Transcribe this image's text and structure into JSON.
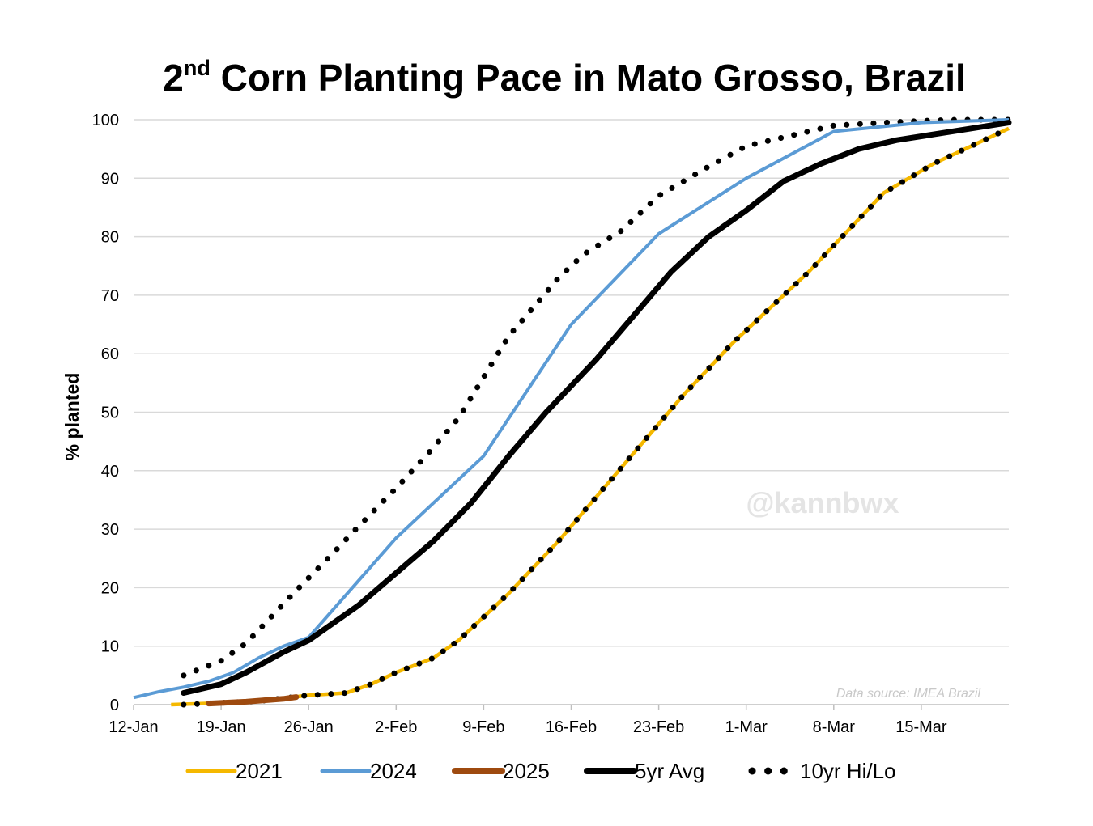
{
  "chart_data": {
    "type": "line",
    "title_main": "2",
    "title_sup": "nd",
    "title_rest": " Corn Planting Pace in Mato Grosso, Brazil",
    "ylabel": "% planted",
    "xlabel": "",
    "ylim": [
      0,
      100
    ],
    "xlim": [
      0,
      70
    ],
    "y_ticks": [
      0,
      10,
      20,
      30,
      40,
      50,
      60,
      70,
      80,
      90,
      100
    ],
    "x_ticks": [
      {
        "label": "12-Jan",
        "day": 0
      },
      {
        "label": "19-Jan",
        "day": 7
      },
      {
        "label": "26-Jan",
        "day": 14
      },
      {
        "label": "2-Feb",
        "day": 21
      },
      {
        "label": "9-Feb",
        "day": 28
      },
      {
        "label": "16-Feb",
        "day": 35
      },
      {
        "label": "23-Feb",
        "day": 42
      },
      {
        "label": "1-Mar",
        "day": 49
      },
      {
        "label": "8-Mar",
        "day": 56
      },
      {
        "label": "15-Mar",
        "day": 63
      }
    ],
    "grid": true,
    "legend_position": "bottom",
    "watermark": "@kannbwx",
    "source": "Data source: IMEA Brazil",
    "series": [
      {
        "name": "10yr Hi/Lo",
        "key": "hi",
        "color": "#000000",
        "style": "dotted",
        "points": [
          [
            4,
            5
          ],
          [
            7,
            7.5
          ],
          [
            9,
            10.5
          ],
          [
            11,
            15
          ],
          [
            13,
            19.5
          ],
          [
            16,
            26
          ],
          [
            18,
            30.5
          ],
          [
            21,
            37
          ],
          [
            24,
            44
          ],
          [
            26,
            49
          ],
          [
            28,
            56
          ],
          [
            30,
            63
          ],
          [
            32,
            68
          ],
          [
            34,
            73
          ],
          [
            36,
            77
          ],
          [
            39,
            81
          ],
          [
            42,
            87
          ],
          [
            46,
            92
          ],
          [
            49,
            95.5
          ],
          [
            53,
            97.5
          ],
          [
            56,
            99
          ],
          [
            60,
            99.5
          ],
          [
            63,
            99.8
          ],
          [
            66,
            100
          ],
          [
            70,
            100
          ]
        ]
      },
      {
        "name": "10yr Hi/Lo",
        "key": "lo",
        "color": "#000000",
        "style": "dotted",
        "points": [
          [
            4,
            0
          ],
          [
            7,
            0.3
          ],
          [
            10,
            0.6
          ],
          [
            14,
            1.6
          ],
          [
            17,
            2
          ],
          [
            19,
            3.5
          ],
          [
            21,
            5.5
          ],
          [
            24,
            8
          ],
          [
            26,
            11
          ],
          [
            28,
            15
          ],
          [
            30,
            19
          ],
          [
            32,
            23.5
          ],
          [
            34,
            28
          ],
          [
            36,
            33
          ],
          [
            38,
            38
          ],
          [
            40,
            43
          ],
          [
            42,
            48
          ],
          [
            44,
            53
          ],
          [
            46,
            57.5
          ],
          [
            48,
            62
          ],
          [
            50,
            66
          ],
          [
            52,
            70
          ],
          [
            54,
            74
          ],
          [
            56,
            78.5
          ],
          [
            58,
            83
          ],
          [
            60,
            87.5
          ],
          [
            62,
            90
          ],
          [
            64,
            92.5
          ],
          [
            66,
            94.5
          ],
          [
            68,
            96.5
          ],
          [
            70,
            98.5
          ]
        ]
      },
      {
        "name": "2021",
        "key": "2021",
        "color": "#f5b800",
        "style": "solid",
        "points": [
          [
            3,
            0
          ],
          [
            7,
            0.3
          ],
          [
            10,
            0.6
          ],
          [
            14,
            1.6
          ],
          [
            17,
            2
          ],
          [
            19,
            3.5
          ],
          [
            21,
            5.5
          ],
          [
            24,
            8
          ],
          [
            26,
            11
          ],
          [
            28,
            15
          ],
          [
            30,
            19
          ],
          [
            32,
            23.5
          ],
          [
            34,
            28
          ],
          [
            36,
            33
          ],
          [
            38,
            38
          ],
          [
            40,
            43
          ],
          [
            42,
            48
          ],
          [
            44,
            53
          ],
          [
            46,
            57.5
          ],
          [
            48,
            62
          ],
          [
            50,
            66
          ],
          [
            52,
            70
          ],
          [
            54,
            74
          ],
          [
            56,
            78.5
          ],
          [
            58,
            83
          ],
          [
            60,
            87.5
          ],
          [
            62,
            90
          ],
          [
            64,
            92.5
          ],
          [
            66,
            94.5
          ],
          [
            68,
            96.5
          ],
          [
            70,
            98.5
          ]
        ]
      },
      {
        "name": "2024",
        "key": "2024",
        "color": "#5b9bd5",
        "style": "solid",
        "points": [
          [
            0,
            1.2
          ],
          [
            2,
            2.2
          ],
          [
            4,
            3
          ],
          [
            6,
            4
          ],
          [
            8,
            5.5
          ],
          [
            10,
            8
          ],
          [
            12,
            10
          ],
          [
            14,
            11.5
          ],
          [
            21,
            28.5
          ],
          [
            28,
            42.5
          ],
          [
            35,
            65
          ],
          [
            42,
            80.5
          ],
          [
            49,
            90
          ],
          [
            56,
            98
          ],
          [
            63,
            99.5
          ],
          [
            70,
            100
          ]
        ]
      },
      {
        "name": "2025",
        "key": "2025",
        "color": "#9e4a0f",
        "style": "solid",
        "points": [
          [
            6,
            0.2
          ],
          [
            9,
            0.5
          ],
          [
            12,
            1
          ],
          [
            13,
            1.3
          ]
        ]
      },
      {
        "name": "5yr Avg",
        "key": "avg",
        "color": "#000000",
        "style": "solid",
        "points": [
          [
            4,
            2
          ],
          [
            7,
            3.5
          ],
          [
            9,
            5.5
          ],
          [
            12,
            9
          ],
          [
            14,
            11
          ],
          [
            18,
            17
          ],
          [
            21,
            22.5
          ],
          [
            24,
            28
          ],
          [
            27,
            34.5
          ],
          [
            30,
            42.5
          ],
          [
            33,
            50
          ],
          [
            35,
            54.5
          ],
          [
            37,
            59
          ],
          [
            40,
            66.5
          ],
          [
            43,
            74
          ],
          [
            46,
            80
          ],
          [
            49,
            84.5
          ],
          [
            52,
            89.5
          ],
          [
            55,
            92.5
          ],
          [
            58,
            95
          ],
          [
            61,
            96.5
          ],
          [
            64,
            97.5
          ],
          [
            67,
            98.5
          ],
          [
            70,
            99.5
          ]
        ]
      }
    ],
    "legend": [
      {
        "name": "2021",
        "color": "#f5b800",
        "style": "solid"
      },
      {
        "name": "2024",
        "color": "#5b9bd5",
        "style": "solid"
      },
      {
        "name": "2025",
        "color": "#9e4a0f",
        "style": "solid"
      },
      {
        "name": "5yr Avg",
        "color": "#000000",
        "style": "solid"
      },
      {
        "name": "10yr Hi/Lo",
        "color": "#000000",
        "style": "dotted"
      }
    ]
  }
}
